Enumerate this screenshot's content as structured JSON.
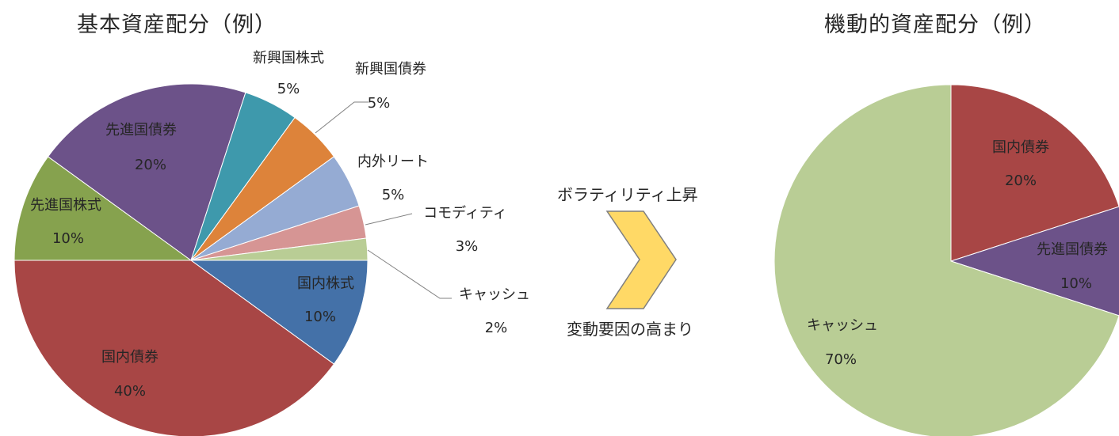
{
  "chart_data": [
    {
      "type": "pie",
      "title": "基本資産配分（例）",
      "start": "3 o'clock, clockwise",
      "slices": [
        {
          "name": "国内株式",
          "label": "10%",
          "value": 10,
          "color": "#4471A8"
        },
        {
          "name": "国内債券",
          "label": "40%",
          "value": 40,
          "color": "#A84645"
        },
        {
          "name": "先進国株式",
          "label": "10%",
          "value": 10,
          "color": "#86A24E"
        },
        {
          "name": "先進国債券",
          "label": "20%",
          "value": 20,
          "color": "#6C5289"
        },
        {
          "name": "新興国株式",
          "label": "5%",
          "value": 5,
          "color": "#3E99AC"
        },
        {
          "name": "新興国債券",
          "label": "5%",
          "value": 5,
          "color": "#DD833A"
        },
        {
          "name": "内外リート",
          "label": "5%",
          "value": 5,
          "color": "#95ABD3"
        },
        {
          "name": "コモディティ",
          "label": "3%",
          "value": 3,
          "color": "#D69594"
        },
        {
          "name": "キャッシュ",
          "label": "2%",
          "value": 2,
          "color": "#B9CD95"
        }
      ]
    },
    {
      "type": "pie",
      "title": "機動的資産配分（例）",
      "start": "12 o'clock, clockwise",
      "slices": [
        {
          "name": "国内債券",
          "label": "20%",
          "value": 20,
          "color": "#A84645"
        },
        {
          "name": "先進国債券",
          "label": "10%",
          "value": 10,
          "color": "#6C5289"
        },
        {
          "name": "キャッシュ",
          "label": "70%",
          "value": 70,
          "color": "#B9CD95"
        }
      ]
    }
  ],
  "transition": {
    "top_text": "ボラティリティ上昇",
    "bottom_text": "変動要因の高まり",
    "arrow_color": "#FFD966"
  }
}
